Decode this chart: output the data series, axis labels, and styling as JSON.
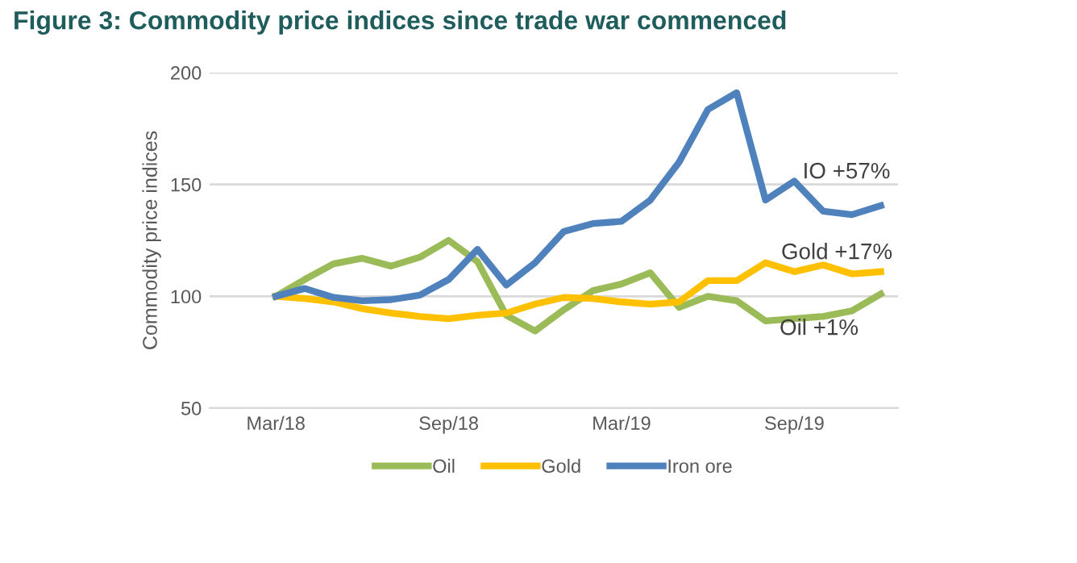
{
  "chart_data": {
    "type": "line",
    "title": "Figure 3: Commodity price indices since trade war commenced",
    "ylabel": "Commodity price indices",
    "categories": [
      "Mar/18",
      null,
      null,
      null,
      null,
      null,
      "Sep/18",
      null,
      null,
      null,
      null,
      null,
      "Mar/19",
      null,
      null,
      null,
      null,
      null,
      "Sep/19",
      null,
      null,
      null
    ],
    "series": [
      {
        "name": "Oil",
        "color": "#9bbb59",
        "values": [
          100,
          107.5,
          114.5,
          117,
          113.5,
          117.5,
          125,
          115.5,
          91.5,
          84.5,
          94,
          102.5,
          105.5,
          110.5,
          95,
          100,
          98,
          89,
          90,
          91,
          93.5,
          101
        ]
      },
      {
        "name": "Gold",
        "color": "#ffc000",
        "values": [
          100,
          99,
          97.5,
          94.5,
          92.5,
          91,
          90,
          91.5,
          92.5,
          96.5,
          99.5,
          99,
          97.5,
          96.5,
          97.5,
          107,
          107,
          115,
          111,
          114,
          110,
          111
        ]
      },
      {
        "name": "Iron ore",
        "color": "#4f81bd",
        "values": [
          100,
          103.5,
          99.5,
          98,
          98.5,
          100.5,
          107.5,
          121,
          105,
          115,
          129,
          132.5,
          133.5,
          143,
          160,
          183.5,
          191,
          143,
          151.5,
          138,
          136.5,
          140.5
        ]
      }
    ],
    "annotations": [
      "IO +57%",
      "Gold +17%",
      "Oil +1%"
    ],
    "ylim": [
      50,
      200
    ],
    "yticks": [
      50,
      100,
      150,
      200
    ],
    "grid": "y",
    "legend": "bottom",
    "marker": "none",
    "line_style": "solid"
  }
}
